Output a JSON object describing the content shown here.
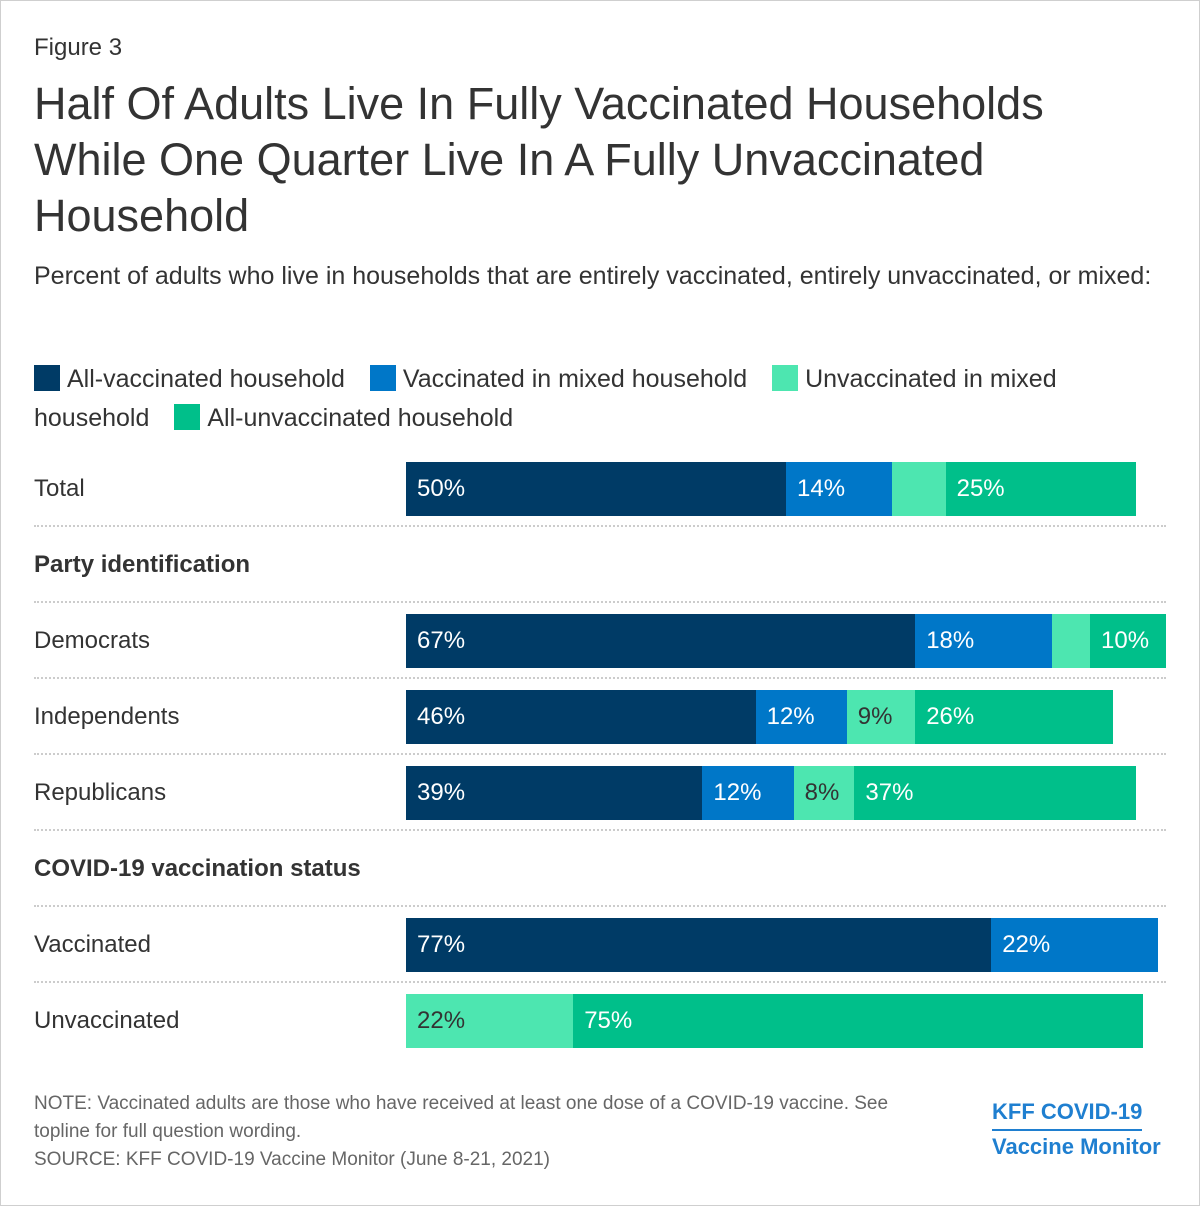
{
  "figure_label": "Figure 3",
  "title": "Half Of Adults Live In Fully Vaccinated Households While One Quarter Live In A Fully Unvaccinated Household",
  "subtitle": "Percent of adults who live in households that are entirely vaccinated, entirely unvaccinated, or mixed:",
  "colors": {
    "all_vaccinated": "#003b66",
    "vaccinated_mixed": "#0077c8",
    "unvaccinated_mixed": "#4de6b0",
    "all_unvaccinated": "#00bf8a"
  },
  "chart_data": {
    "type": "bar",
    "orientation": "horizontal",
    "stacked": true,
    "title": "Half Of Adults Live In Fully Vaccinated Households While One Quarter Live In A Fully Unvaccinated Household",
    "subtitle": "Percent of adults who live in households that are entirely vaccinated, entirely unvaccinated, or mixed:",
    "xlim": [
      0,
      100
    ],
    "series": [
      {
        "name": "All-vaccinated household",
        "key": "all_vaccinated"
      },
      {
        "name": "Vaccinated in mixed household",
        "key": "vaccinated_mixed"
      },
      {
        "name": "Unvaccinated in mixed household",
        "key": "unvaccinated_mixed"
      },
      {
        "name": "All-unvaccinated household",
        "key": "all_unvaccinated"
      }
    ],
    "sections": [
      {
        "label": "",
        "rows": [
          {
            "label": "Total",
            "values": [
              50,
              14,
              7,
              25
            ],
            "labels": [
              "50%",
              "14%",
              "",
              "25%"
            ]
          }
        ]
      },
      {
        "label": "Party identification",
        "rows": [
          {
            "label": "Democrats",
            "values": [
              67,
              18,
              5,
              10
            ],
            "labels": [
              "67%",
              "18%",
              "",
              "10%"
            ]
          },
          {
            "label": "Independents",
            "values": [
              46,
              12,
              9,
              26
            ],
            "labels": [
              "46%",
              "12%",
              "9%",
              "26%"
            ]
          },
          {
            "label": "Republicans",
            "values": [
              39,
              12,
              8,
              37
            ],
            "labels": [
              "39%",
              "12%",
              "8%",
              "37%"
            ]
          }
        ]
      },
      {
        "label": "COVID-19 vaccination status",
        "rows": [
          {
            "label": "Vaccinated",
            "values": [
              77,
              22,
              0,
              0
            ],
            "labels": [
              "77%",
              "22%",
              "",
              ""
            ]
          },
          {
            "label": "Unvaccinated",
            "values": [
              0,
              0,
              22,
              75
            ],
            "labels": [
              "",
              "",
              "22%",
              "75%"
            ]
          }
        ]
      }
    ]
  },
  "note": "NOTE: Vaccinated adults are those who have received at least one dose of a COVID-19 vaccine. See topline for full question wording.",
  "source": "SOURCE: KFF COVID-19 Vaccine Monitor (June 8-21, 2021)",
  "brand": {
    "line1": "KFF COVID-19",
    "line2": "Vaccine Monitor"
  }
}
